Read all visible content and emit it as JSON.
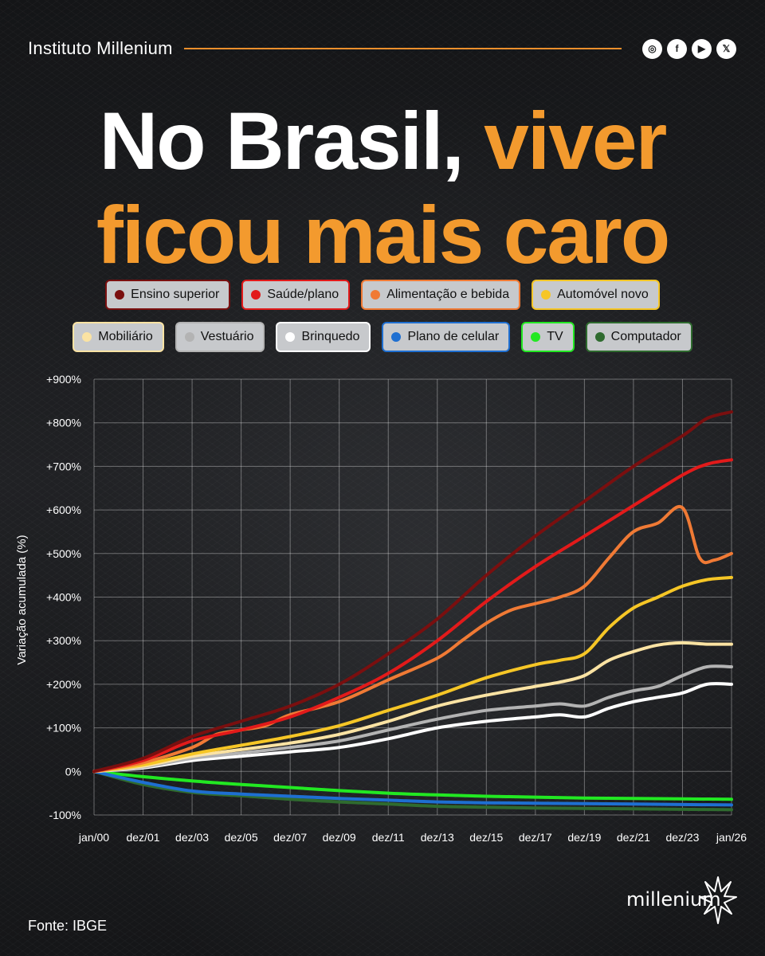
{
  "header": {
    "brand": "Instituto Millenium"
  },
  "socials": [
    {
      "icon": "instagram-icon",
      "glyph": "◎"
    },
    {
      "icon": "facebook-icon",
      "glyph": "f"
    },
    {
      "icon": "youtube-icon",
      "glyph": "▶"
    },
    {
      "icon": "x-icon",
      "glyph": "𝕏"
    }
  ],
  "title": {
    "part1": "No Brasil,",
    "part2": "viver",
    "line2": "ficou mais caro"
  },
  "colors": {
    "accent": "#f39a2e",
    "background": "#1b1c1e"
  },
  "footer": {
    "source": "Fonte: IBGE",
    "logo_text": "millenium"
  },
  "chart_data": {
    "type": "line",
    "ylabel": "Variação acumulada (%)",
    "ylim": [
      -100,
      900
    ],
    "yticks": [
      -100,
      0,
      100,
      200,
      300,
      400,
      500,
      600,
      700,
      800,
      900
    ],
    "ytick_labels": [
      "-100%",
      "0%",
      "+100%",
      "+200%",
      "+300%",
      "+400%",
      "+500%",
      "+600%",
      "+700%",
      "+800%",
      "+900%"
    ],
    "xlim": [
      0,
      26
    ],
    "xticks": [
      0,
      2,
      4,
      6,
      8,
      10,
      12,
      14,
      16,
      18,
      20,
      22,
      24,
      26
    ],
    "xtick_labels": [
      "jan/00",
      "dez/01",
      "dez/03",
      "dez/05",
      "dez/07",
      "dez/09",
      "dez/11",
      "dez/13",
      "dez/15",
      "dez/17",
      "dez/19",
      "dez/21",
      "dez/23",
      "jan/26"
    ],
    "grid": true,
    "legend_position": "top",
    "series": [
      {
        "name": "Ensino superior",
        "color": "#7a0f0f",
        "points": [
          [
            0,
            0
          ],
          [
            2,
            30
          ],
          [
            4,
            80
          ],
          [
            6,
            115
          ],
          [
            8,
            150
          ],
          [
            10,
            200
          ],
          [
            12,
            270
          ],
          [
            14,
            350
          ],
          [
            16,
            450
          ],
          [
            18,
            540
          ],
          [
            20,
            620
          ],
          [
            22,
            700
          ],
          [
            24,
            770
          ],
          [
            25,
            810
          ],
          [
            26,
            825
          ]
        ]
      },
      {
        "name": "Saúde/plano",
        "color": "#e21a1a",
        "points": [
          [
            0,
            0
          ],
          [
            2,
            25
          ],
          [
            4,
            70
          ],
          [
            6,
            95
          ],
          [
            8,
            125
          ],
          [
            10,
            170
          ],
          [
            12,
            225
          ],
          [
            14,
            300
          ],
          [
            16,
            390
          ],
          [
            18,
            470
          ],
          [
            20,
            540
          ],
          [
            22,
            610
          ],
          [
            24,
            680
          ],
          [
            25,
            705
          ],
          [
            26,
            715
          ]
        ]
      },
      {
        "name": "Alimentação e bebida",
        "color": "#f07a35",
        "points": [
          [
            0,
            0
          ],
          [
            2,
            20
          ],
          [
            4,
            55
          ],
          [
            5,
            85
          ],
          [
            6,
            95
          ],
          [
            7,
            105
          ],
          [
            8,
            130
          ],
          [
            10,
            160
          ],
          [
            12,
            210
          ],
          [
            14,
            260
          ],
          [
            15,
            300
          ],
          [
            16,
            340
          ],
          [
            17,
            370
          ],
          [
            18,
            385
          ],
          [
            19,
            400
          ],
          [
            20,
            425
          ],
          [
            21,
            490
          ],
          [
            22,
            550
          ],
          [
            23,
            570
          ],
          [
            24,
            605
          ],
          [
            24.7,
            490
          ],
          [
            25.3,
            485
          ],
          [
            26,
            500
          ]
        ]
      },
      {
        "name": "Automóvel novo",
        "color": "#f6c626",
        "points": [
          [
            0,
            0
          ],
          [
            2,
            15
          ],
          [
            4,
            40
          ],
          [
            6,
            60
          ],
          [
            8,
            80
          ],
          [
            10,
            105
          ],
          [
            12,
            140
          ],
          [
            14,
            175
          ],
          [
            16,
            215
          ],
          [
            18,
            245
          ],
          [
            19,
            255
          ],
          [
            20,
            270
          ],
          [
            21,
            330
          ],
          [
            22,
            375
          ],
          [
            23,
            400
          ],
          [
            24,
            425
          ],
          [
            25,
            440
          ],
          [
            26,
            445
          ]
        ]
      },
      {
        "name": "Mobiliário",
        "color": "#fbe3a3",
        "points": [
          [
            0,
            0
          ],
          [
            2,
            12
          ],
          [
            4,
            35
          ],
          [
            6,
            50
          ],
          [
            8,
            65
          ],
          [
            10,
            85
          ],
          [
            12,
            115
          ],
          [
            14,
            150
          ],
          [
            16,
            175
          ],
          [
            18,
            195
          ],
          [
            19,
            205
          ],
          [
            20,
            220
          ],
          [
            21,
            255
          ],
          [
            22,
            275
          ],
          [
            23,
            290
          ],
          [
            24,
            295
          ],
          [
            25,
            292
          ],
          [
            26,
            292
          ]
        ]
      },
      {
        "name": "Vestuário",
        "color": "#b3b3b3",
        "points": [
          [
            0,
            0
          ],
          [
            2,
            10
          ],
          [
            4,
            30
          ],
          [
            6,
            42
          ],
          [
            8,
            55
          ],
          [
            10,
            70
          ],
          [
            12,
            95
          ],
          [
            14,
            120
          ],
          [
            16,
            140
          ],
          [
            18,
            150
          ],
          [
            19,
            155
          ],
          [
            20,
            150
          ],
          [
            21,
            170
          ],
          [
            22,
            185
          ],
          [
            23,
            195
          ],
          [
            24,
            220
          ],
          [
            25,
            240
          ],
          [
            26,
            240
          ]
        ]
      },
      {
        "name": "Brinquedo",
        "color": "#ffffff",
        "points": [
          [
            0,
            0
          ],
          [
            2,
            8
          ],
          [
            4,
            25
          ],
          [
            6,
            35
          ],
          [
            8,
            45
          ],
          [
            10,
            55
          ],
          [
            12,
            75
          ],
          [
            14,
            100
          ],
          [
            16,
            115
          ],
          [
            18,
            125
          ],
          [
            19,
            130
          ],
          [
            20,
            125
          ],
          [
            21,
            145
          ],
          [
            22,
            160
          ],
          [
            23,
            170
          ],
          [
            24,
            180
          ],
          [
            25,
            200
          ],
          [
            26,
            200
          ]
        ]
      },
      {
        "name": "Plano de celular",
        "color": "#1e6fd1",
        "points": [
          [
            0,
            0
          ],
          [
            2,
            -25
          ],
          [
            4,
            -45
          ],
          [
            6,
            -52
          ],
          [
            8,
            -57
          ],
          [
            10,
            -62
          ],
          [
            12,
            -66
          ],
          [
            14,
            -70
          ],
          [
            16,
            -72
          ],
          [
            18,
            -73
          ],
          [
            20,
            -74
          ],
          [
            22,
            -75
          ],
          [
            24,
            -76
          ],
          [
            26,
            -77
          ]
        ]
      },
      {
        "name": "TV",
        "color": "#22e822",
        "points": [
          [
            0,
            0
          ],
          [
            2,
            -12
          ],
          [
            4,
            -22
          ],
          [
            6,
            -30
          ],
          [
            8,
            -37
          ],
          [
            10,
            -44
          ],
          [
            12,
            -50
          ],
          [
            14,
            -54
          ],
          [
            16,
            -57
          ],
          [
            18,
            -59
          ],
          [
            20,
            -61
          ],
          [
            22,
            -62
          ],
          [
            24,
            -63
          ],
          [
            26,
            -64
          ]
        ]
      },
      {
        "name": "Computador",
        "color": "#2f6b2f",
        "points": [
          [
            0,
            0
          ],
          [
            2,
            -30
          ],
          [
            4,
            -48
          ],
          [
            6,
            -56
          ],
          [
            8,
            -64
          ],
          [
            10,
            -70
          ],
          [
            12,
            -75
          ],
          [
            14,
            -80
          ],
          [
            16,
            -82
          ],
          [
            18,
            -84
          ],
          [
            20,
            -85
          ],
          [
            22,
            -86
          ],
          [
            24,
            -87
          ],
          [
            26,
            -88
          ]
        ]
      }
    ]
  }
}
